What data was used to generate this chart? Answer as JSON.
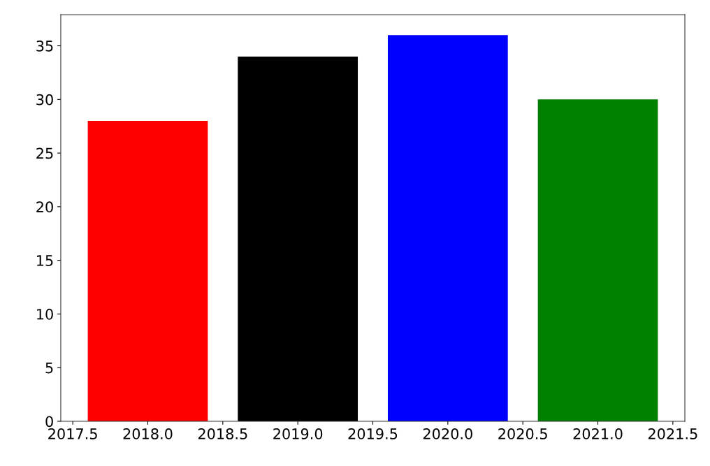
{
  "chart_data": {
    "type": "bar",
    "x": [
      2018,
      2019,
      2020,
      2021
    ],
    "values": [
      28,
      34,
      36,
      30
    ],
    "colors": [
      "#ff0000",
      "#000000",
      "#0000ff",
      "#008000"
    ],
    "xlim": [
      2017.42,
      2021.58
    ],
    "xticks": [
      {
        "value": 2017.5,
        "label": "2017.5"
      },
      {
        "value": 2018,
        "label": "2018.0"
      },
      {
        "value": 2018.5,
        "label": "2018.5"
      },
      {
        "value": 2019,
        "label": "2019.0"
      },
      {
        "value": 2019.5,
        "label": "2019.5"
      },
      {
        "value": 2020,
        "label": "2020.0"
      },
      {
        "value": 2020.5,
        "label": "2020.5"
      },
      {
        "value": 2021,
        "label": "2021.0"
      },
      {
        "value": 2021.5,
        "label": "2021.5"
      }
    ],
    "ylim": [
      0,
      37.9
    ],
    "yticks": [
      0,
      5,
      10,
      15,
      20,
      25,
      30,
      35
    ],
    "grid": false,
    "legend": false
  }
}
